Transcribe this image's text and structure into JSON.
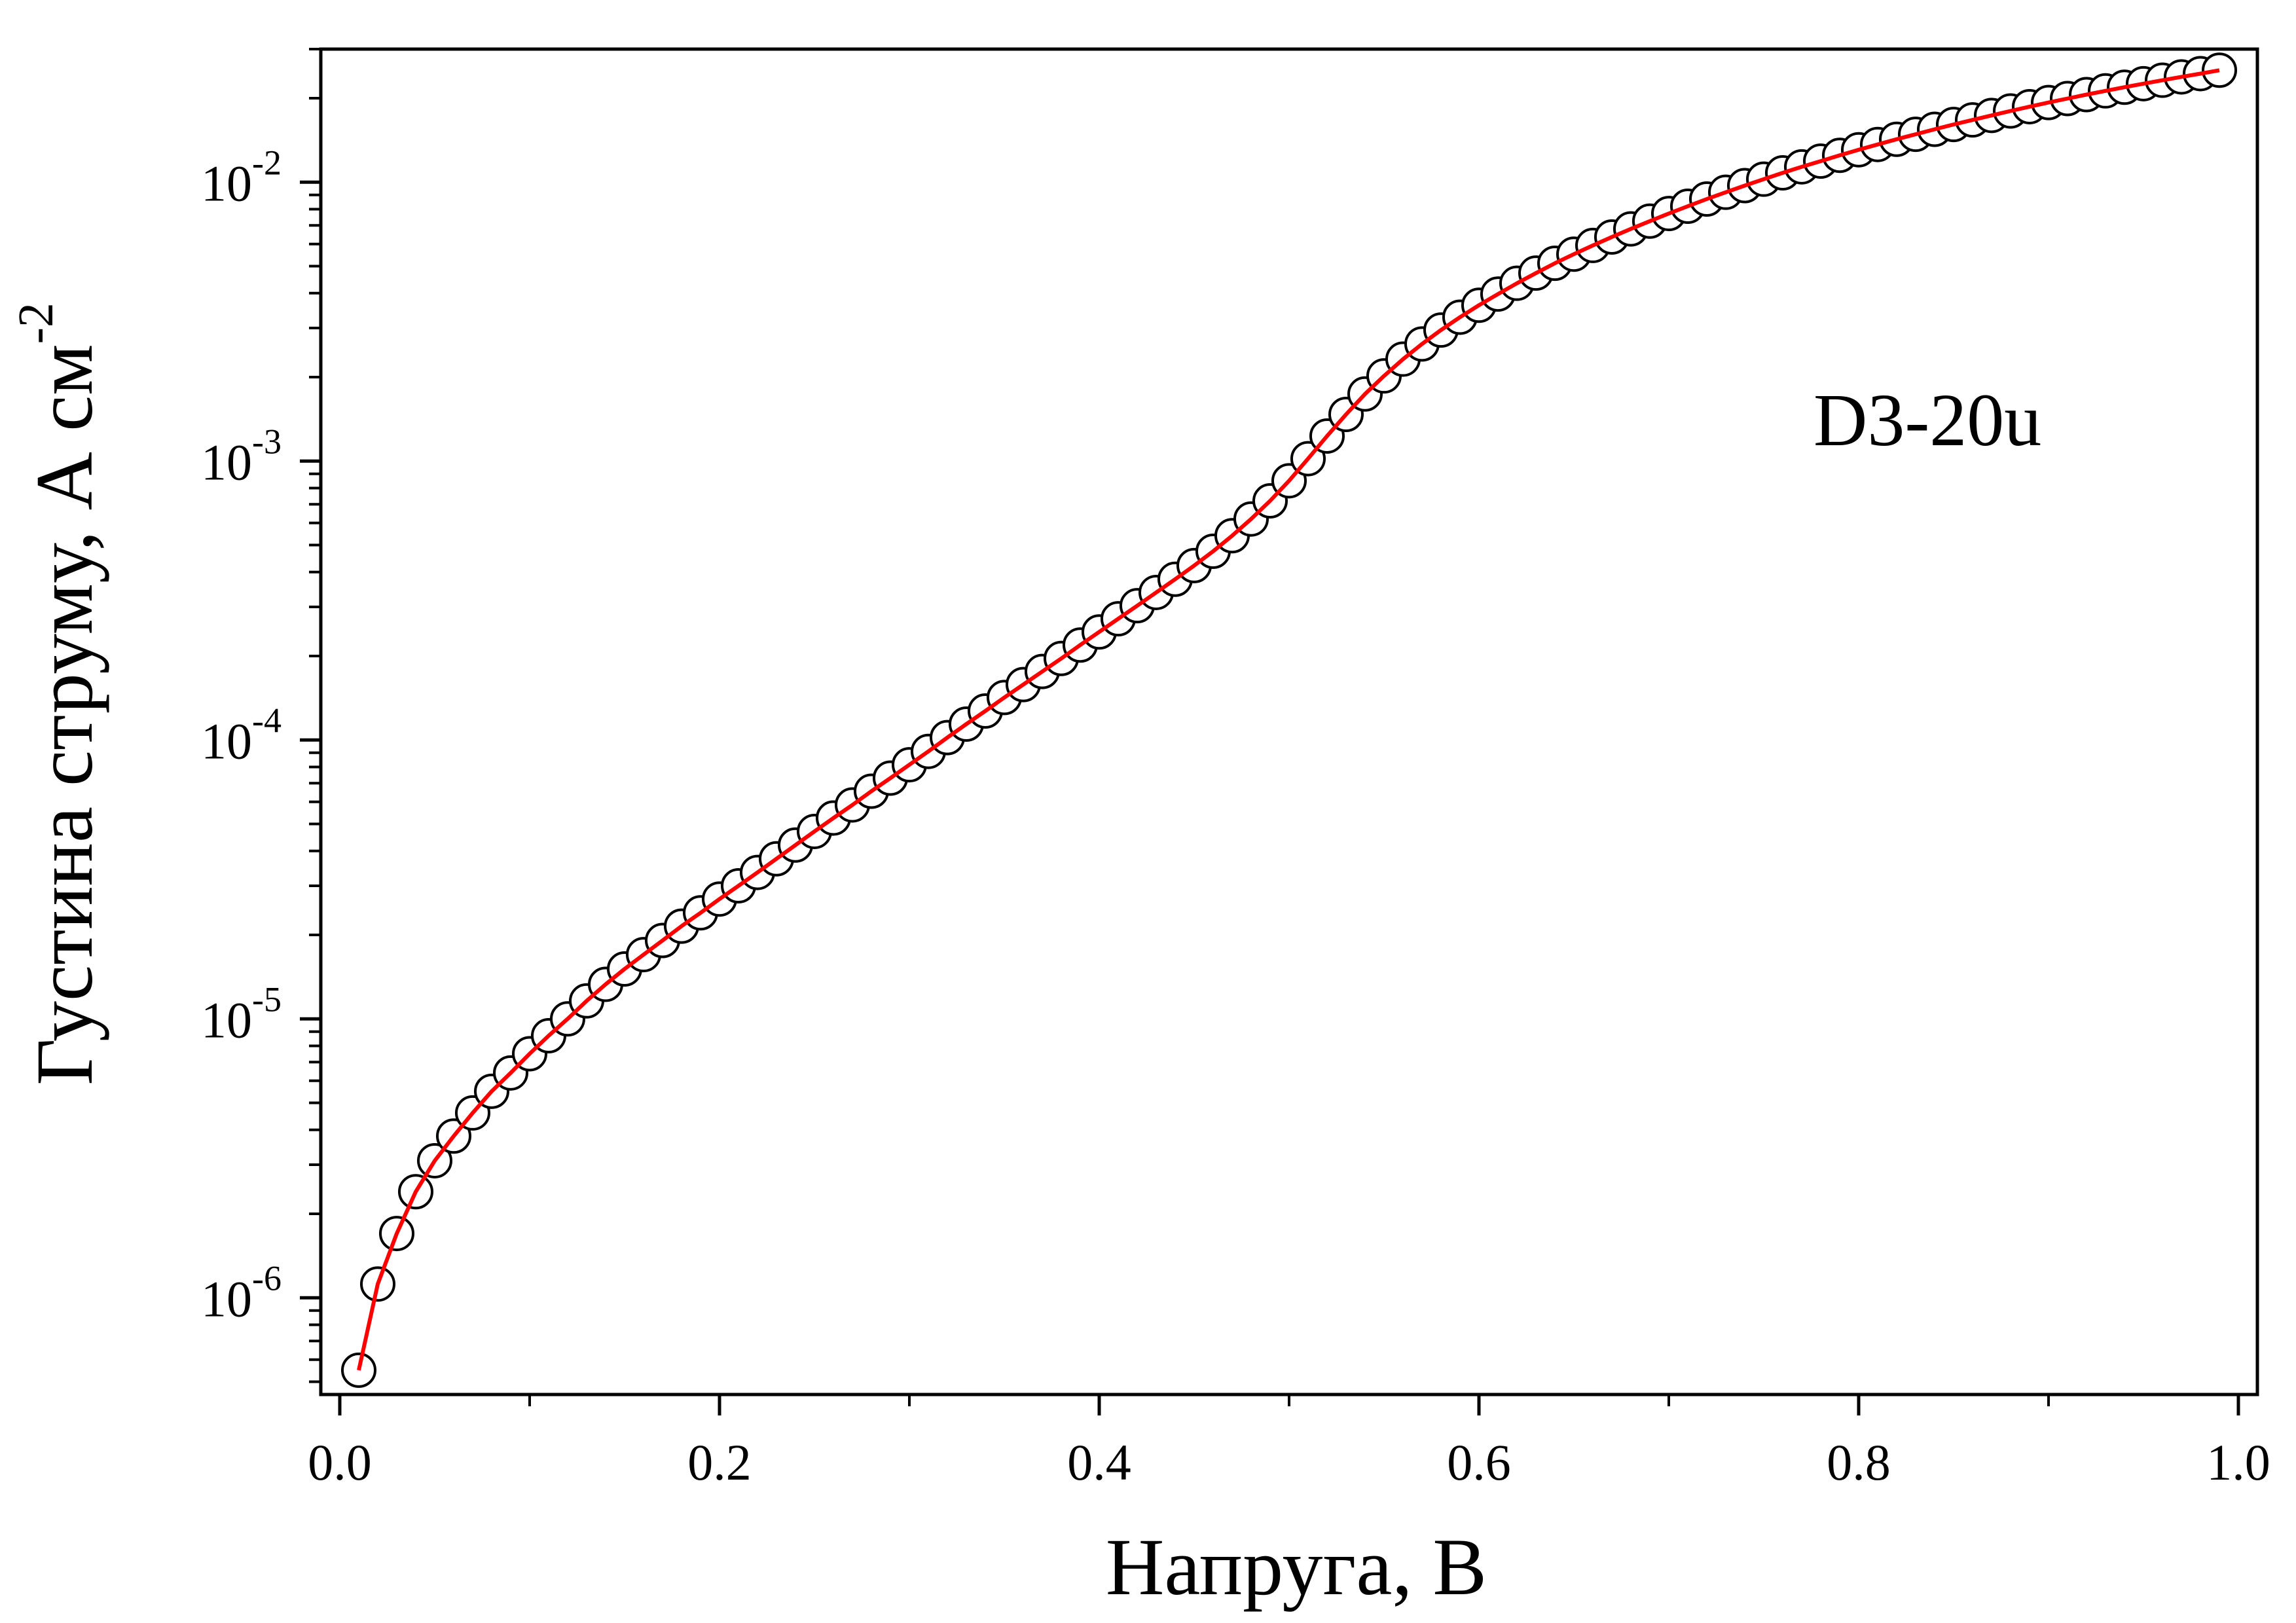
{
  "chart_data": {
    "type": "scatter",
    "title": "",
    "xlabel": "Напруга, В",
    "ylabel": "Густина струму, А см",
    "ylabel_sup": "-2",
    "annotation": "D3-20u",
    "xlim": [
      -0.01,
      1.01
    ],
    "ylim": [
      4.5e-07,
      0.03
    ],
    "yscale": "log",
    "grid": false,
    "legend": "none",
    "x_ticks": [
      {
        "v": 0.0,
        "label": "0.0"
      },
      {
        "v": 0.2,
        "label": "0.2"
      },
      {
        "v": 0.4,
        "label": "0.4"
      },
      {
        "v": 0.6,
        "label": "0.6"
      },
      {
        "v": 0.8,
        "label": "0.8"
      },
      {
        "v": 1.0,
        "label": "1.0"
      }
    ],
    "x_minor_ticks": [
      0.1,
      0.3,
      0.5,
      0.7,
      0.9
    ],
    "y_ticks": [
      {
        "v": 1e-06,
        "base": "10",
        "exp": "-6"
      },
      {
        "v": 1e-05,
        "base": "10",
        "exp": "-5"
      },
      {
        "v": 0.0001,
        "base": "10",
        "exp": "-4"
      },
      {
        "v": 0.001,
        "base": "10",
        "exp": "-3"
      },
      {
        "v": 0.01,
        "base": "10",
        "exp": "-2"
      }
    ],
    "colors": {
      "fit": "#ff0000",
      "marker_stroke": "#000000",
      "marker_fill": "#ffffff",
      "axis": "#000000"
    },
    "series": [
      {
        "style": "open-circle-markers",
        "x": [
          0.01,
          0.02,
          0.03,
          0.04,
          0.05,
          0.06,
          0.07,
          0.08,
          0.09,
          0.1,
          0.11,
          0.12,
          0.13,
          0.14,
          0.15,
          0.16,
          0.17,
          0.18,
          0.19,
          0.2,
          0.21,
          0.22,
          0.23,
          0.24,
          0.25,
          0.26,
          0.27,
          0.28,
          0.29,
          0.3,
          0.31,
          0.32,
          0.33,
          0.34,
          0.35,
          0.36,
          0.37,
          0.38,
          0.39,
          0.4,
          0.41,
          0.42,
          0.43,
          0.44,
          0.45,
          0.46,
          0.47,
          0.48,
          0.49,
          0.5,
          0.51,
          0.52,
          0.53,
          0.54,
          0.55,
          0.56,
          0.57,
          0.58,
          0.59,
          0.6,
          0.61,
          0.62,
          0.63,
          0.64,
          0.65,
          0.66,
          0.67,
          0.68,
          0.69,
          0.7,
          0.71,
          0.72,
          0.73,
          0.74,
          0.75,
          0.76,
          0.77,
          0.78,
          0.79,
          0.8,
          0.81,
          0.82,
          0.83,
          0.84,
          0.85,
          0.86,
          0.87,
          0.88,
          0.89,
          0.9,
          0.91,
          0.92,
          0.93,
          0.94,
          0.95,
          0.96,
          0.97,
          0.98,
          0.99
        ],
        "y": [
          5.5e-07,
          1.12e-06,
          1.7e-06,
          2.4e-06,
          3.1e-06,
          3.8e-06,
          4.6e-06,
          5.5e-06,
          6.4e-06,
          7.5e-06,
          8.7e-06,
          1e-05,
          1.16e-05,
          1.33e-05,
          1.51e-05,
          1.7e-05,
          1.91e-05,
          2.15e-05,
          2.4e-05,
          2.69e-05,
          3e-05,
          3.35e-05,
          3.75e-05,
          4.2e-05,
          4.7e-05,
          5.25e-05,
          5.85e-05,
          6.55e-05,
          7.3e-05,
          8.15e-05,
          9.1e-05,
          0.000102,
          0.000114,
          0.000127,
          0.000142,
          0.000158,
          0.000176,
          0.000196,
          0.000219,
          0.000244,
          0.000272,
          0.000303,
          0.000338,
          0.000377,
          0.000422,
          0.000475,
          0.00054,
          0.00062,
          0.00072,
          0.00085,
          0.00102,
          0.00123,
          0.00147,
          0.00174,
          0.00202,
          0.00232,
          0.00263,
          0.00295,
          0.00328,
          0.00362,
          0.00397,
          0.00434,
          0.00472,
          0.00512,
          0.00552,
          0.00593,
          0.00636,
          0.0068,
          0.00725,
          0.00772,
          0.0082,
          0.0087,
          0.0092,
          0.00972,
          0.01025,
          0.0108,
          0.01135,
          0.0119,
          0.01248,
          0.01307,
          0.01365,
          0.01425,
          0.01485,
          0.01547,
          0.0161,
          0.01672,
          0.01735,
          0.018,
          0.01865,
          0.0193,
          0.01995,
          0.0206,
          0.02125,
          0.0219,
          0.02255,
          0.0232,
          0.02385,
          0.0245,
          0.0252
        ]
      },
      {
        "style": "fit-line",
        "x": [
          0.01,
          0.02,
          0.03,
          0.04,
          0.05,
          0.06,
          0.07,
          0.08,
          0.09,
          0.1,
          0.11,
          0.12,
          0.13,
          0.14,
          0.15,
          0.16,
          0.17,
          0.18,
          0.19,
          0.2,
          0.21,
          0.22,
          0.23,
          0.24,
          0.25,
          0.26,
          0.27,
          0.28,
          0.29,
          0.3,
          0.31,
          0.32,
          0.33,
          0.34,
          0.35,
          0.36,
          0.37,
          0.38,
          0.39,
          0.4,
          0.41,
          0.42,
          0.43,
          0.44,
          0.45,
          0.46,
          0.47,
          0.48,
          0.49,
          0.5,
          0.51,
          0.52,
          0.53,
          0.54,
          0.55,
          0.56,
          0.57,
          0.58,
          0.59,
          0.6,
          0.61,
          0.62,
          0.63,
          0.64,
          0.65,
          0.66,
          0.67,
          0.68,
          0.69,
          0.7,
          0.71,
          0.72,
          0.73,
          0.74,
          0.75,
          0.76,
          0.77,
          0.78,
          0.79,
          0.8,
          0.81,
          0.82,
          0.83,
          0.84,
          0.85,
          0.86,
          0.87,
          0.88,
          0.89,
          0.9,
          0.91,
          0.92,
          0.93,
          0.94,
          0.95,
          0.96,
          0.97,
          0.98,
          0.99
        ],
        "y": [
          5.5e-07,
          1.12e-06,
          1.7e-06,
          2.4e-06,
          3.1e-06,
          3.8e-06,
          4.6e-06,
          5.5e-06,
          6.4e-06,
          7.5e-06,
          8.7e-06,
          1e-05,
          1.16e-05,
          1.33e-05,
          1.51e-05,
          1.7e-05,
          1.91e-05,
          2.15e-05,
          2.4e-05,
          2.69e-05,
          3e-05,
          3.35e-05,
          3.75e-05,
          4.2e-05,
          4.7e-05,
          5.25e-05,
          5.85e-05,
          6.55e-05,
          7.3e-05,
          8.15e-05,
          9.1e-05,
          0.000102,
          0.000114,
          0.000127,
          0.000142,
          0.000158,
          0.000176,
          0.000196,
          0.000219,
          0.000244,
          0.000272,
          0.000303,
          0.000338,
          0.000377,
          0.000422,
          0.000475,
          0.00054,
          0.00062,
          0.00072,
          0.00085,
          0.00102,
          0.00123,
          0.00147,
          0.00174,
          0.00202,
          0.00232,
          0.00263,
          0.00295,
          0.00328,
          0.00362,
          0.00397,
          0.00434,
          0.00472,
          0.00512,
          0.00552,
          0.00593,
          0.00636,
          0.0068,
          0.00725,
          0.00772,
          0.0082,
          0.0087,
          0.0092,
          0.00972,
          0.01025,
          0.0108,
          0.01135,
          0.0119,
          0.01248,
          0.01307,
          0.01365,
          0.01425,
          0.01485,
          0.01547,
          0.0161,
          0.01672,
          0.01735,
          0.018,
          0.01865,
          0.0193,
          0.01995,
          0.0206,
          0.02125,
          0.0219,
          0.02255,
          0.0232,
          0.02385,
          0.0245,
          0.0252
        ]
      }
    ]
  }
}
